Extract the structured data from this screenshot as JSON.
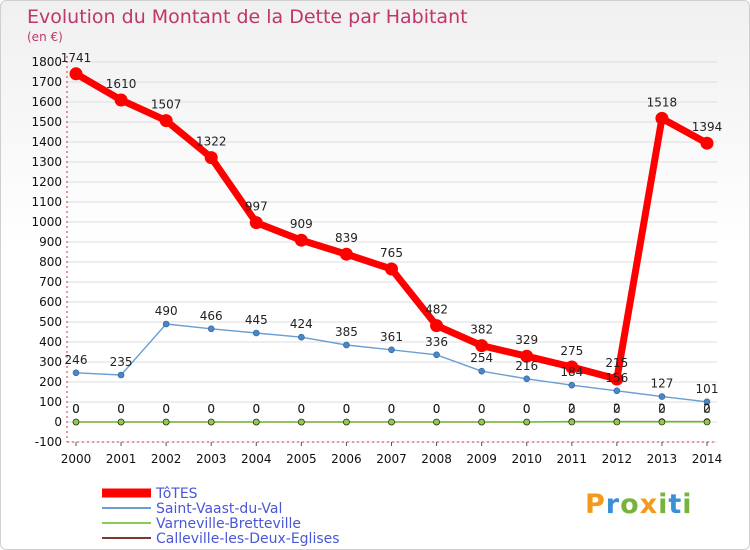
{
  "title": "Evolution du Montant de la Dette par Habitant",
  "unit": "(en €)",
  "logo": "Proxiti",
  "chart_data": {
    "type": "line",
    "title": "Evolution du Montant de la Dette par Habitant",
    "ylabel": "(en €)",
    "ylim": [
      -100,
      1800
    ],
    "yticks": [
      -100,
      0,
      100,
      200,
      300,
      400,
      500,
      600,
      700,
      800,
      900,
      1000,
      1100,
      1200,
      1300,
      1400,
      1500,
      1600,
      1700,
      1800
    ],
    "x": [
      "2000",
      "2001",
      "2002",
      "2003",
      "2004",
      "2005",
      "2006",
      "2007",
      "2008",
      "2009",
      "2010",
      "2011",
      "2012",
      "2013",
      "2014"
    ],
    "legend_position": "bottom-left",
    "series": [
      {
        "name": "TôTES",
        "color": "#ff0000",
        "values": [
          1741,
          1610,
          1507,
          1322,
          997,
          909,
          839,
          765,
          482,
          382,
          329,
          275,
          215,
          1518,
          1394
        ],
        "labels": [
          "1741",
          "1610",
          "1507",
          "1322",
          "997",
          "909",
          "839",
          "765",
          "482",
          "382",
          "329",
          "275",
          "215",
          "1518",
          "1394"
        ]
      },
      {
        "name": "Saint-Vaast-du-Val",
        "color": "#6a9fd4",
        "values": [
          246,
          235,
          490,
          466,
          445,
          424,
          385,
          361,
          336,
          254,
          216,
          184,
          156,
          127,
          101
        ],
        "labels": [
          "246",
          "235",
          "490",
          "466",
          "445",
          "424",
          "385",
          "361",
          "336",
          "254",
          "216",
          "184",
          "156",
          "127",
          "101"
        ]
      },
      {
        "name": "Varneville-Bretteville",
        "color": "#88cc55",
        "values": [
          0,
          0,
          0,
          0,
          0,
          0,
          0,
          0,
          0,
          0,
          0,
          0,
          0,
          0,
          0
        ],
        "labels": [
          "0",
          "0",
          "0",
          "0",
          "0",
          "0",
          "0",
          "0",
          "0",
          "0",
          "0",
          "0",
          "0",
          "0",
          "0"
        ]
      },
      {
        "name": "Calleville-les-Deux-Eglises",
        "color": "#7a3b32",
        "values": [
          0,
          0,
          0,
          0,
          0,
          0,
          0,
          0,
          0,
          0,
          0,
          2,
          2,
          2,
          2
        ],
        "labels": [
          "0",
          "0",
          "0",
          "0",
          "0",
          "0",
          "0",
          "0",
          "0",
          "0",
          "0",
          "2",
          "2",
          "2",
          "2"
        ]
      }
    ]
  }
}
